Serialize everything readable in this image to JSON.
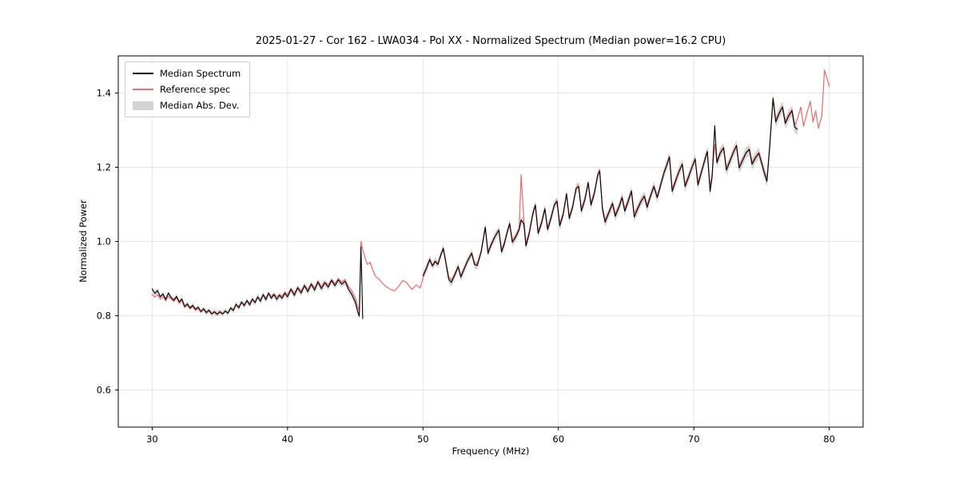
{
  "figure": {
    "background": "#ffffff"
  },
  "chart_data": {
    "type": "line",
    "title": "2025-01-27 - Cor 162 - LWA034 - Pol XX - Normalized Spectrum (Median power=16.2 CPU)",
    "xlabel": "Frequency (MHz)",
    "ylabel": "Normalized Power",
    "xlim": [
      27.5,
      82.5
    ],
    "ylim": [
      0.5,
      1.5
    ],
    "xticks": [
      30,
      40,
      50,
      60,
      70,
      80
    ],
    "yticks": [
      0.6,
      0.8,
      1.0,
      1.2,
      1.4
    ],
    "grid": true,
    "grid_color": "#e6e6e6",
    "spine_color": "#000000",
    "legend_position": "upper left",
    "series": [
      {
        "name": "Median Spectrum",
        "color": "#000000",
        "line_width": 1.1,
        "value_index": 1
      },
      {
        "name": "Reference spec",
        "color": "#ee7272",
        "line_width": 1.3,
        "value_index": 2
      }
    ],
    "band": {
      "name": "Median Abs. Dev.",
      "color": "#c8c8c8",
      "opacity": 0.8,
      "half_width_base": 0.006,
      "half_width_slope": 0.0002,
      "around_value_index": 1
    },
    "columns": [
      "frequency_mhz",
      "median_power",
      "reference_power"
    ],
    "points": [
      [
        30.0,
        0.872,
        0.858
      ],
      [
        30.2,
        0.86,
        0.85
      ],
      [
        30.4,
        0.868,
        0.857
      ],
      [
        30.6,
        0.851,
        0.845
      ],
      [
        30.8,
        0.859,
        0.852
      ],
      [
        31.0,
        0.844,
        0.84
      ],
      [
        31.2,
        0.861,
        0.852
      ],
      [
        31.4,
        0.849,
        0.845
      ],
      [
        31.6,
        0.842,
        0.838
      ],
      [
        31.8,
        0.852,
        0.848
      ],
      [
        32.0,
        0.837,
        0.834
      ],
      [
        32.2,
        0.845,
        0.84
      ],
      [
        32.4,
        0.825,
        0.823
      ],
      [
        32.6,
        0.832,
        0.828
      ],
      [
        32.8,
        0.821,
        0.819
      ],
      [
        33.0,
        0.828,
        0.824
      ],
      [
        33.2,
        0.817,
        0.815
      ],
      [
        33.4,
        0.823,
        0.82
      ],
      [
        33.6,
        0.811,
        0.811
      ],
      [
        33.8,
        0.819,
        0.817
      ],
      [
        34.0,
        0.809,
        0.807
      ],
      [
        34.2,
        0.815,
        0.813
      ],
      [
        34.4,
        0.805,
        0.805
      ],
      [
        34.6,
        0.811,
        0.809
      ],
      [
        34.8,
        0.804,
        0.803
      ],
      [
        35.0,
        0.811,
        0.809
      ],
      [
        35.2,
        0.805,
        0.805
      ],
      [
        35.4,
        0.813,
        0.811
      ],
      [
        35.6,
        0.807,
        0.807
      ],
      [
        35.8,
        0.821,
        0.819
      ],
      [
        36.0,
        0.814,
        0.817
      ],
      [
        36.2,
        0.831,
        0.829
      ],
      [
        36.4,
        0.821,
        0.825
      ],
      [
        36.6,
        0.837,
        0.835
      ],
      [
        36.8,
        0.827,
        0.831
      ],
      [
        37.0,
        0.841,
        0.839
      ],
      [
        37.2,
        0.829,
        0.835
      ],
      [
        37.4,
        0.845,
        0.843
      ],
      [
        37.6,
        0.835,
        0.839
      ],
      [
        37.8,
        0.851,
        0.849
      ],
      [
        38.0,
        0.839,
        0.845
      ],
      [
        38.2,
        0.857,
        0.855
      ],
      [
        38.4,
        0.843,
        0.849
      ],
      [
        38.6,
        0.861,
        0.859
      ],
      [
        38.8,
        0.847,
        0.853
      ],
      [
        39.0,
        0.857,
        0.859
      ],
      [
        39.2,
        0.844,
        0.851
      ],
      [
        39.4,
        0.855,
        0.857
      ],
      [
        39.6,
        0.847,
        0.853
      ],
      [
        39.8,
        0.861,
        0.863
      ],
      [
        40.0,
        0.851,
        0.857
      ],
      [
        40.25,
        0.871,
        0.873
      ],
      [
        40.5,
        0.855,
        0.861
      ],
      [
        40.75,
        0.875,
        0.877
      ],
      [
        41.0,
        0.861,
        0.867
      ],
      [
        41.25,
        0.881,
        0.883
      ],
      [
        41.5,
        0.865,
        0.871
      ],
      [
        41.75,
        0.885,
        0.887
      ],
      [
        42.0,
        0.869,
        0.875
      ],
      [
        42.25,
        0.891,
        0.893
      ],
      [
        42.5,
        0.873,
        0.879
      ],
      [
        42.75,
        0.889,
        0.891
      ],
      [
        43.0,
        0.877,
        0.883
      ],
      [
        43.25,
        0.895,
        0.897
      ],
      [
        43.5,
        0.881,
        0.887
      ],
      [
        43.75,
        0.897,
        0.899
      ],
      [
        44.0,
        0.885,
        0.891
      ],
      [
        44.25,
        0.893,
        0.897
      ],
      [
        44.5,
        0.871,
        0.879
      ],
      [
        44.75,
        0.857,
        0.867
      ],
      [
        45.0,
        0.837,
        0.849
      ],
      [
        45.2,
        0.809,
        0.823
      ],
      [
        45.3,
        0.799,
        0.815
      ],
      [
        45.42,
        0.985,
        1.0
      ],
      [
        45.55,
        0.792,
        0.978
      ],
      [
        45.7,
        null,
        0.958
      ],
      [
        45.9,
        null,
        0.938
      ],
      [
        46.1,
        null,
        0.944
      ],
      [
        46.3,
        null,
        0.922
      ],
      [
        46.5,
        null,
        0.906
      ],
      [
        46.8,
        null,
        0.897
      ],
      [
        47.0,
        null,
        0.888
      ],
      [
        47.3,
        null,
        0.878
      ],
      [
        47.6,
        null,
        0.871
      ],
      [
        47.9,
        null,
        0.867
      ],
      [
        48.2,
        null,
        0.879
      ],
      [
        48.5,
        null,
        0.895
      ],
      [
        48.8,
        null,
        0.889
      ],
      [
        49.0,
        null,
        0.879
      ],
      [
        49.2,
        null,
        0.871
      ],
      [
        49.5,
        null,
        0.883
      ],
      [
        49.8,
        null,
        0.875
      ],
      [
        50.0,
        0.908,
        0.902
      ],
      [
        50.25,
        0.928,
        0.925
      ],
      [
        50.5,
        0.952,
        0.949
      ],
      [
        50.7,
        0.934,
        0.936
      ],
      [
        50.9,
        0.946,
        0.948
      ],
      [
        51.1,
        0.938,
        0.941
      ],
      [
        51.3,
        0.962,
        0.96
      ],
      [
        51.5,
        0.982,
        0.98
      ],
      [
        51.7,
        0.94,
        0.945
      ],
      [
        51.9,
        0.898,
        0.905
      ],
      [
        52.1,
        0.89,
        0.896
      ],
      [
        52.35,
        0.91,
        0.914
      ],
      [
        52.6,
        0.932,
        0.934
      ],
      [
        52.8,
        0.904,
        0.908
      ],
      [
        53.0,
        0.922,
        0.925
      ],
      [
        53.3,
        0.948,
        0.95
      ],
      [
        53.6,
        0.968,
        0.97
      ],
      [
        53.8,
        0.938,
        0.942
      ],
      [
        54.0,
        0.935,
        0.939
      ],
      [
        54.3,
        0.972,
        0.974
      ],
      [
        54.6,
        1.038,
        1.04
      ],
      [
        54.8,
        0.968,
        0.974
      ],
      [
        55.0,
        0.988,
        0.991
      ],
      [
        55.3,
        1.012,
        1.014
      ],
      [
        55.6,
        1.03,
        1.032
      ],
      [
        55.8,
        0.972,
        0.978
      ],
      [
        56.0,
        0.992,
        0.996
      ],
      [
        56.2,
        1.022,
        1.024
      ],
      [
        56.4,
        1.048,
        1.05
      ],
      [
        56.6,
        0.998,
        1.004
      ],
      [
        56.85,
        1.012,
        1.016
      ],
      [
        57.1,
        1.032,
        1.036
      ],
      [
        57.25,
        1.058,
        1.18
      ],
      [
        57.45,
        1.048,
        1.06
      ],
      [
        57.6,
        0.988,
        0.996
      ],
      [
        57.85,
        1.022,
        1.026
      ],
      [
        58.1,
        1.072,
        1.075
      ],
      [
        58.3,
        1.098,
        1.1
      ],
      [
        58.5,
        1.022,
        1.028
      ],
      [
        58.75,
        1.048,
        1.052
      ],
      [
        59.0,
        1.088,
        1.09
      ],
      [
        59.2,
        1.032,
        1.038
      ],
      [
        59.45,
        1.062,
        1.066
      ],
      [
        59.7,
        1.098,
        1.1
      ],
      [
        59.9,
        1.108,
        1.112
      ],
      [
        60.1,
        1.042,
        1.048
      ],
      [
        60.35,
        1.072,
        1.076
      ],
      [
        60.6,
        1.128,
        1.13
      ],
      [
        60.8,
        1.062,
        1.068
      ],
      [
        61.05,
        1.092,
        1.096
      ],
      [
        61.3,
        1.142,
        1.144
      ],
      [
        61.5,
        1.148,
        1.152
      ],
      [
        61.7,
        1.082,
        1.088
      ],
      [
        61.95,
        1.112,
        1.116
      ],
      [
        62.2,
        1.158,
        1.16
      ],
      [
        62.4,
        1.098,
        1.104
      ],
      [
        62.65,
        1.128,
        1.132
      ],
      [
        62.9,
        1.178,
        1.18
      ],
      [
        63.05,
        1.19,
        1.192
      ],
      [
        63.25,
        1.088,
        1.094
      ],
      [
        63.45,
        1.052,
        1.058
      ],
      [
        63.7,
        1.075,
        1.079
      ],
      [
        64.0,
        1.102,
        1.105
      ],
      [
        64.2,
        1.068,
        1.074
      ],
      [
        64.5,
        1.095,
        1.099
      ],
      [
        64.7,
        1.118,
        1.121
      ],
      [
        64.9,
        1.082,
        1.088
      ],
      [
        65.15,
        1.108,
        1.112
      ],
      [
        65.4,
        1.135,
        1.138
      ],
      [
        65.6,
        1.066,
        1.074
      ],
      [
        65.85,
        1.088,
        1.092
      ],
      [
        66.1,
        1.108,
        1.11
      ],
      [
        66.35,
        1.122,
        1.124
      ],
      [
        66.55,
        1.092,
        1.098
      ],
      [
        66.8,
        1.122,
        1.125
      ],
      [
        67.05,
        1.148,
        1.15
      ],
      [
        67.3,
        1.118,
        1.122
      ],
      [
        67.55,
        1.152,
        1.155
      ],
      [
        67.8,
        1.185,
        1.187
      ],
      [
        68.0,
        1.205,
        1.208
      ],
      [
        68.2,
        1.228,
        1.23
      ],
      [
        68.4,
        1.135,
        1.142
      ],
      [
        68.65,
        1.162,
        1.166
      ],
      [
        68.9,
        1.188,
        1.19
      ],
      [
        69.15,
        1.208,
        1.21
      ],
      [
        69.35,
        1.148,
        1.154
      ],
      [
        69.6,
        1.172,
        1.176
      ],
      [
        69.85,
        1.198,
        1.2
      ],
      [
        70.1,
        1.222,
        1.224
      ],
      [
        70.3,
        1.152,
        1.158
      ],
      [
        70.55,
        1.185,
        1.188
      ],
      [
        70.8,
        1.218,
        1.22
      ],
      [
        71.0,
        1.242,
        1.244
      ],
      [
        71.2,
        1.135,
        1.145
      ],
      [
        71.35,
        1.175,
        1.182
      ],
      [
        71.55,
        1.312,
        1.262
      ],
      [
        71.7,
        1.212,
        1.218
      ],
      [
        71.95,
        1.238,
        1.24
      ],
      [
        72.2,
        1.252,
        1.254
      ],
      [
        72.4,
        1.192,
        1.198
      ],
      [
        72.65,
        1.215,
        1.218
      ],
      [
        72.9,
        1.238,
        1.24
      ],
      [
        73.15,
        1.258,
        1.26
      ],
      [
        73.35,
        1.198,
        1.204
      ],
      [
        73.6,
        1.218,
        1.221
      ],
      [
        73.85,
        1.238,
        1.24
      ],
      [
        74.1,
        1.248,
        1.25
      ],
      [
        74.3,
        1.208,
        1.213
      ],
      [
        74.55,
        1.225,
        1.228
      ],
      [
        74.8,
        1.238,
        1.24
      ],
      [
        75.0,
        1.212,
        1.216
      ],
      [
        75.2,
        1.185,
        1.19
      ],
      [
        75.4,
        1.162,
        1.168
      ],
      [
        75.6,
        1.255,
        1.258
      ],
      [
        75.85,
        1.385,
        1.388
      ],
      [
        76.05,
        1.322,
        1.328
      ],
      [
        76.3,
        1.345,
        1.348
      ],
      [
        76.55,
        1.362,
        1.364
      ],
      [
        76.75,
        1.318,
        1.324
      ],
      [
        77.0,
        1.338,
        1.341
      ],
      [
        77.25,
        1.352,
        1.355
      ],
      [
        77.45,
        1.308,
        1.314
      ],
      [
        77.65,
        1.302,
        1.33
      ],
      [
        77.9,
        null,
        1.362
      ],
      [
        78.1,
        null,
        1.31
      ],
      [
        78.35,
        null,
        1.345
      ],
      [
        78.6,
        null,
        1.378
      ],
      [
        78.8,
        null,
        1.322
      ],
      [
        79.0,
        null,
        1.352
      ],
      [
        79.2,
        null,
        1.305
      ],
      [
        79.45,
        null,
        1.338
      ],
      [
        79.65,
        null,
        1.462
      ],
      [
        79.85,
        null,
        1.438
      ],
      [
        80.0,
        null,
        1.418
      ]
    ]
  }
}
